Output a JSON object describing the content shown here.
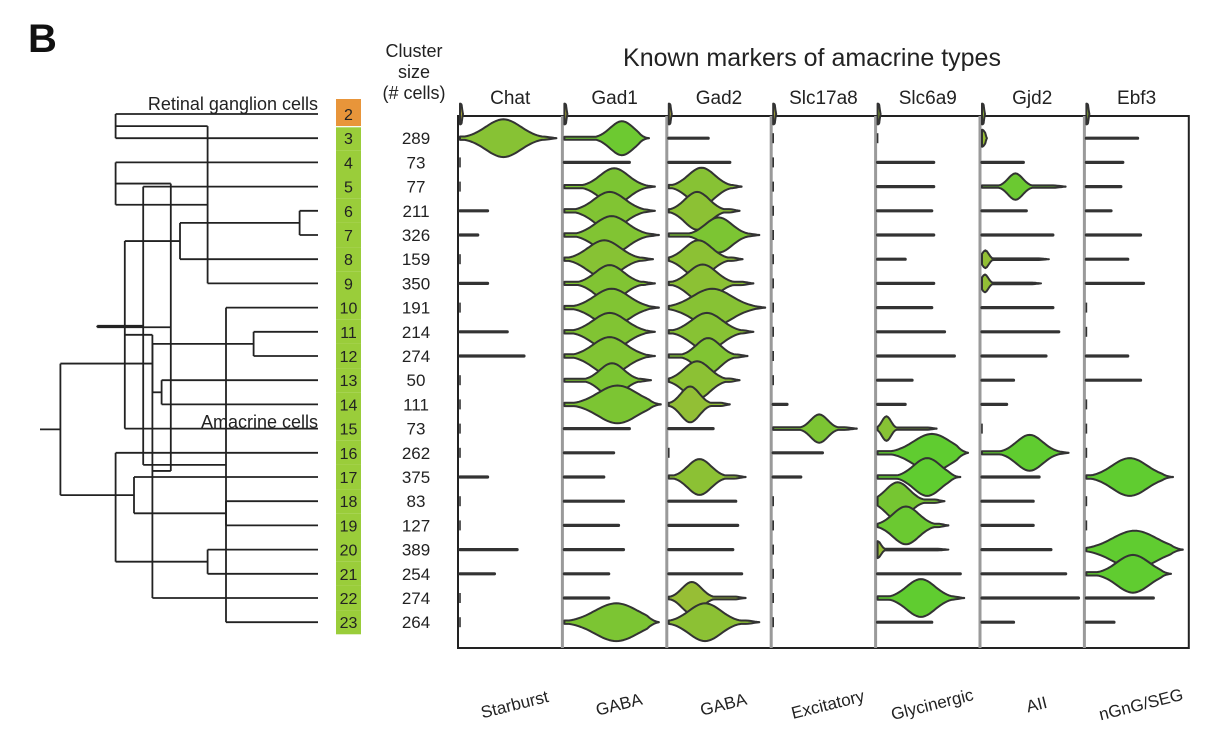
{
  "panel_label": "B",
  "chart_data": {
    "type": "violin",
    "title": "Known markers of amacrine types",
    "size_header": [
      "Cluster",
      "size",
      "(# cells)"
    ],
    "groups": [
      "Retinal ganglion cells",
      "Amacrine cells"
    ],
    "clusters": [
      {
        "id": "2",
        "size": "",
        "group": "Retinal ganglion cells",
        "color": "#e8953a"
      },
      {
        "id": "3",
        "size": "289",
        "group": "Amacrine cells",
        "color": "#9acd3a"
      },
      {
        "id": "4",
        "size": "73",
        "group": "Amacrine cells",
        "color": "#9acd3a"
      },
      {
        "id": "5",
        "size": "77",
        "group": "Amacrine cells",
        "color": "#9acd3a"
      },
      {
        "id": "6",
        "size": "211",
        "group": "Amacrine cells",
        "color": "#9acd3a"
      },
      {
        "id": "7",
        "size": "326",
        "group": "Amacrine cells",
        "color": "#9acd3a"
      },
      {
        "id": "8",
        "size": "159",
        "group": "Amacrine cells",
        "color": "#9acd3a"
      },
      {
        "id": "9",
        "size": "350",
        "group": "Amacrine cells",
        "color": "#9acd3a"
      },
      {
        "id": "10",
        "size": "191",
        "group": "Amacrine cells",
        "color": "#9acd3a"
      },
      {
        "id": "11",
        "size": "214",
        "group": "Amacrine cells",
        "color": "#9acd3a"
      },
      {
        "id": "12",
        "size": "274",
        "group": "Amacrine cells",
        "color": "#9acd3a"
      },
      {
        "id": "13",
        "size": "50",
        "group": "Amacrine cells",
        "color": "#9acd3a"
      },
      {
        "id": "14",
        "size": "111",
        "group": "Amacrine cells",
        "color": "#9acd3a"
      },
      {
        "id": "15",
        "size": "73",
        "group": "Amacrine cells",
        "color": "#9acd3a"
      },
      {
        "id": "16",
        "size": "262",
        "group": "Amacrine cells",
        "color": "#9acd3a"
      },
      {
        "id": "17",
        "size": "375",
        "group": "Amacrine cells",
        "color": "#9acd3a"
      },
      {
        "id": "18",
        "size": "83",
        "group": "Amacrine cells",
        "color": "#9acd3a"
      },
      {
        "id": "19",
        "size": "127",
        "group": "Amacrine cells",
        "color": "#9acd3a"
      },
      {
        "id": "20",
        "size": "389",
        "group": "Amacrine cells",
        "color": "#9acd3a"
      },
      {
        "id": "21",
        "size": "254",
        "group": "Amacrine cells",
        "color": "#9acd3a"
      },
      {
        "id": "22",
        "size": "274",
        "group": "Amacrine cells",
        "color": "#9acd3a"
      },
      {
        "id": "23",
        "size": "264",
        "group": "Amacrine cells",
        "color": "#9acd3a"
      }
    ],
    "markers": [
      {
        "gene": "Chat",
        "label": "Starburst"
      },
      {
        "gene": "Gad1",
        "label": "GABA"
      },
      {
        "gene": "Gad2",
        "label": "GABA"
      },
      {
        "gene": "Slc17a8",
        "label": "Excitatory"
      },
      {
        "gene": "Slc6a9",
        "label": "Glycinergic"
      },
      {
        "gene": "Gjd2",
        "label": "AII"
      },
      {
        "gene": "Ebf3",
        "label": "nGnG/SEG"
      }
    ],
    "expression_rows_note": "one row per cluster (2..23), one entry per marker; each entry [extent, peak_position, peak_width] as fractions of the column",
    "expression": [
      [
        [
          0.03,
          0.0,
          0.2
        ],
        [
          0.03,
          0.0,
          0.2
        ],
        [
          0.03,
          0.0,
          0.2
        ],
        [
          0.03,
          0.0,
          0.2
        ],
        [
          0.03,
          0.0,
          0.2
        ],
        [
          0.03,
          0.0,
          0.2
        ],
        [
          0.03,
          0.0,
          0.2
        ]
      ],
      [
        [
          0.98,
          0.45,
          0.72
        ],
        [
          0.86,
          0.68,
          0.55
        ],
        [
          0.4,
          0.0,
          0.05
        ],
        [
          0.0,
          0.0,
          0.0
        ],
        [
          0.0,
          0.0,
          0.0
        ],
        [
          0.05,
          0.0,
          0.1
        ],
        [
          0.52,
          0.0,
          0.05
        ]
      ],
      [
        [
          0.0,
          0.0,
          0.0
        ],
        [
          0.66,
          0.0,
          0.05
        ],
        [
          0.62,
          0.0,
          0.05
        ],
        [
          0.0,
          0.0,
          0.0
        ],
        [
          0.57,
          0.0,
          0.05
        ],
        [
          0.42,
          0.0,
          0.05
        ],
        [
          0.37,
          0.0,
          0.05
        ]
      ],
      [
        [
          0.0,
          0.0,
          0.0
        ],
        [
          0.92,
          0.55,
          0.62
        ],
        [
          0.74,
          0.45,
          0.72
        ],
        [
          0.0,
          0.0,
          0.0
        ],
        [
          0.57,
          0.0,
          0.05
        ],
        [
          0.85,
          0.4,
          0.35
        ],
        [
          0.35,
          0.0,
          0.05
        ]
      ],
      [
        [
          0.28,
          0.0,
          0.05
        ],
        [
          0.92,
          0.5,
          0.68
        ],
        [
          0.72,
          0.4,
          0.68
        ],
        [
          0.0,
          0.0,
          0.0
        ],
        [
          0.55,
          0.0,
          0.05
        ],
        [
          0.45,
          0.0,
          0.05
        ],
        [
          0.25,
          0.0,
          0.05
        ]
      ],
      [
        [
          0.18,
          0.0,
          0.05
        ],
        [
          0.96,
          0.5,
          0.68
        ],
        [
          0.92,
          0.55,
          0.58
        ],
        [
          0.0,
          0.0,
          0.0
        ],
        [
          0.57,
          0.0,
          0.05
        ],
        [
          0.72,
          0.0,
          0.05
        ],
        [
          0.55,
          0.0,
          0.05
        ]
      ],
      [
        [
          0.0,
          0.0,
          0.0
        ],
        [
          0.9,
          0.45,
          0.72
        ],
        [
          0.75,
          0.4,
          0.72
        ],
        [
          0.0,
          0.0,
          0.0
        ],
        [
          0.28,
          0.0,
          0.05
        ],
        [
          0.68,
          0.05,
          0.12
        ],
        [
          0.42,
          0.0,
          0.05
        ]
      ],
      [
        [
          0.28,
          0.0,
          0.05
        ],
        [
          0.92,
          0.5,
          0.62
        ],
        [
          0.86,
          0.4,
          0.65
        ],
        [
          0.0,
          0.0,
          0.0
        ],
        [
          0.57,
          0.0,
          0.05
        ],
        [
          0.6,
          0.05,
          0.12
        ],
        [
          0.58,
          0.0,
          0.05
        ]
      ],
      [
        [
          0.0,
          0.0,
          0.0
        ],
        [
          0.96,
          0.5,
          0.72
        ],
        [
          0.98,
          0.45,
          0.8
        ],
        [
          0.0,
          0.0,
          0.0
        ],
        [
          0.55,
          0.0,
          0.05
        ],
        [
          0.72,
          0.0,
          0.05
        ],
        [
          0.0,
          0.0,
          0.0
        ]
      ],
      [
        [
          0.48,
          0.0,
          0.05
        ],
        [
          0.92,
          0.5,
          0.72
        ],
        [
          0.86,
          0.45,
          0.72
        ],
        [
          0.0,
          0.0,
          0.0
        ],
        [
          0.68,
          0.0,
          0.05
        ],
        [
          0.78,
          0.0,
          0.05
        ],
        [
          0.0,
          0.0,
          0.0
        ]
      ],
      [
        [
          0.65,
          0.0,
          0.05
        ],
        [
          0.92,
          0.5,
          0.72
        ],
        [
          0.8,
          0.5,
          0.6
        ],
        [
          0.0,
          0.0,
          0.0
        ],
        [
          0.78,
          0.0,
          0.05
        ],
        [
          0.65,
          0.0,
          0.05
        ],
        [
          0.42,
          0.0,
          0.05
        ]
      ],
      [
        [
          0.0,
          0.0,
          0.0
        ],
        [
          0.88,
          0.55,
          0.55
        ],
        [
          0.72,
          0.4,
          0.72
        ],
        [
          0.0,
          0.0,
          0.0
        ],
        [
          0.35,
          0.0,
          0.05
        ],
        [
          0.32,
          0.0,
          0.05
        ],
        [
          0.55,
          0.0,
          0.05
        ]
      ],
      [
        [
          0.0,
          0.0,
          0.0
        ],
        [
          0.98,
          0.55,
          0.8
        ],
        [
          0.62,
          0.35,
          0.6
        ],
        [
          0.14,
          0.0,
          0.05
        ],
        [
          0.28,
          0.0,
          0.05
        ],
        [
          0.25,
          0.0,
          0.05
        ],
        [
          0.0,
          0.0,
          0.0
        ]
      ],
      [
        [
          0.0,
          0.0,
          0.0
        ],
        [
          0.66,
          0.0,
          0.05
        ],
        [
          0.45,
          0.0,
          0.05
        ],
        [
          0.85,
          0.55,
          0.4
        ],
        [
          0.6,
          0.15,
          0.3
        ],
        [
          0.0,
          0.0,
          0.0
        ],
        [
          0.0,
          0.0,
          0.0
        ]
      ],
      [
        [
          0.0,
          0.0,
          0.0
        ],
        [
          0.5,
          0.0,
          0.05
        ],
        [
          0.0,
          0.0,
          0.0
        ],
        [
          0.5,
          0.0,
          0.05
        ],
        [
          0.92,
          0.6,
          0.8
        ],
        [
          0.88,
          0.55,
          0.6
        ],
        [
          0.0,
          0.0,
          0.0
        ]
      ],
      [
        [
          0.28,
          0.0,
          0.05
        ],
        [
          0.4,
          0.0,
          0.05
        ],
        [
          0.78,
          0.4,
          0.6
        ],
        [
          0.28,
          0.0,
          0.05
        ],
        [
          0.84,
          0.6,
          0.65
        ],
        [
          0.58,
          0.0,
          0.05
        ],
        [
          0.88,
          0.5,
          0.8
        ]
      ],
      [
        [
          0.0,
          0.0,
          0.0
        ],
        [
          0.6,
          0.0,
          0.05
        ],
        [
          0.68,
          0.0,
          0.05
        ],
        [
          0.0,
          0.0,
          0.0
        ],
        [
          0.68,
          0.3,
          0.7
        ],
        [
          0.52,
          0.0,
          0.05
        ],
        [
          0.0,
          0.0,
          0.0
        ]
      ],
      [
        [
          0.0,
          0.0,
          0.0
        ],
        [
          0.55,
          0.0,
          0.05
        ],
        [
          0.7,
          0.0,
          0.05
        ],
        [
          0.0,
          0.0,
          0.0
        ],
        [
          0.72,
          0.4,
          0.72
        ],
        [
          0.52,
          0.0,
          0.05
        ],
        [
          0.0,
          0.0,
          0.0
        ]
      ],
      [
        [
          0.58,
          0.0,
          0.05
        ],
        [
          0.6,
          0.0,
          0.05
        ],
        [
          0.65,
          0.0,
          0.05
        ],
        [
          0.0,
          0.0,
          0.0
        ],
        [
          0.72,
          0.0,
          0.1
        ],
        [
          0.7,
          0.0,
          0.05
        ],
        [
          0.98,
          0.5,
          0.9
        ]
      ],
      [
        [
          0.35,
          0.0,
          0.05
        ],
        [
          0.45,
          0.0,
          0.05
        ],
        [
          0.74,
          0.0,
          0.05
        ],
        [
          0.0,
          0.0,
          0.0
        ],
        [
          0.84,
          0.0,
          0.05
        ],
        [
          0.85,
          0.0,
          0.05
        ],
        [
          0.86,
          0.55,
          0.75
        ]
      ],
      [
        [
          0.0,
          0.0,
          0.0
        ],
        [
          0.45,
          0.0,
          0.05
        ],
        [
          0.78,
          0.3,
          0.5
        ],
        [
          0.0,
          0.0,
          0.0
        ],
        [
          0.88,
          0.5,
          0.65
        ],
        [
          0.98,
          0.0,
          0.05
        ],
        [
          0.68,
          0.0,
          0.05
        ]
      ],
      [
        [
          0.0,
          0.0,
          0.0
        ],
        [
          0.96,
          0.55,
          0.9
        ],
        [
          0.92,
          0.4,
          0.7
        ],
        [
          0.0,
          0.0,
          0.0
        ],
        [
          0.55,
          0.0,
          0.05
        ],
        [
          0.32,
          0.0,
          0.05
        ],
        [
          0.28,
          0.0,
          0.05
        ]
      ]
    ],
    "dendrogram": {
      "leaves": [
        "2",
        "3",
        "4",
        "5",
        "6",
        "7",
        "8",
        "9",
        "10",
        "11",
        "12",
        "13",
        "14",
        "15",
        "16",
        "17",
        "18",
        "19",
        "20",
        "21",
        "22",
        "23"
      ],
      "merges": [
        [
          0,
          1,
          0.08
        ],
        [
          4,
          5,
          0.28
        ],
        [
          9,
          10,
          0.23
        ],
        [
          8,
          21,
          0.2
        ],
        [
          7,
          22,
          0.18
        ],
        [
          6,
          23,
          0.15
        ],
        [
          20,
          24,
          0.12
        ],
        [
          3,
          25,
          0.11
        ],
        [
          2,
          26,
          0.08
        ],
        [
          11,
          12,
          0.13
        ],
        [
          27,
          13,
          0.09
        ],
        [
          16,
          17,
          0.2
        ],
        [
          18,
          19,
          0.18
        ],
        [
          28,
          30,
          0.14
        ],
        [
          31,
          32,
          0.12
        ],
        [
          15,
          33,
          0.1
        ],
        [
          14,
          34,
          0.08
        ],
        [
          29,
          35,
          0.06
        ],
        [
          36,
          37,
          0.02
        ]
      ]
    }
  }
}
